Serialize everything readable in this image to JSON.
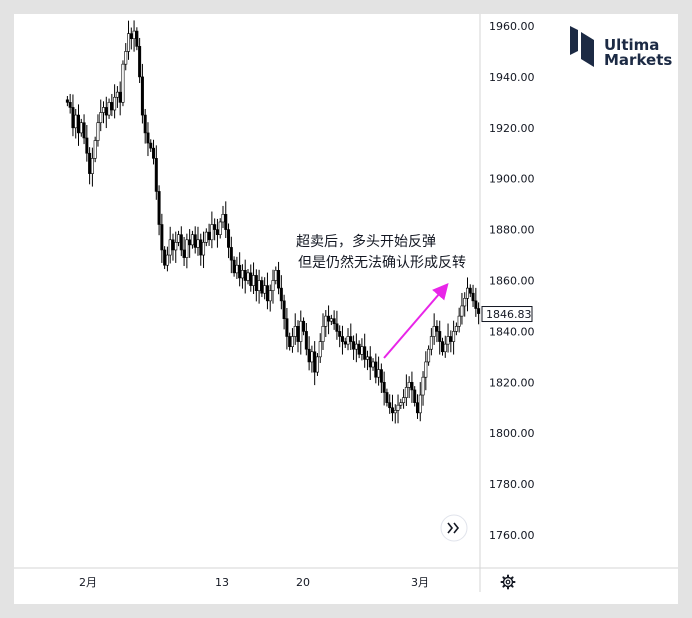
{
  "brand": {
    "name_line1": "Ultima",
    "name_line2": "Markets"
  },
  "annotation": {
    "line1": "超卖后，多头开始反弹",
    "line2": "但是仍然无法确认形成反转"
  },
  "price_tag": "1846.83",
  "icons": {
    "scroll": "double-chevron-right-icon",
    "settings": "gear-icon"
  },
  "chart_data": {
    "type": "candlestick",
    "title": "",
    "x_tick_labels": [
      "2月",
      "13",
      "20",
      "3月"
    ],
    "y_tick_labels": [
      "1960.00",
      "1940.00",
      "1920.00",
      "1900.00",
      "1880.00",
      "1860.00",
      "1840.00",
      "1820.00",
      "1800.00",
      "1780.00",
      "1760.00"
    ],
    "ylim": [
      1755,
      1965
    ],
    "last_price": 1846.83,
    "grid": false,
    "colors": {
      "candle_up": "#ffffff",
      "candle_down": "#000000",
      "outline": "#000000",
      "arrow": "#e825e8",
      "price_tag_border": "#131722"
    },
    "close_path": [
      1930,
      1928,
      1920,
      1925,
      1918,
      1922,
      1916,
      1910,
      1902,
      1908,
      1915,
      1922,
      1926,
      1928,
      1925,
      1930,
      1927,
      1932,
      1934,
      1930,
      1945,
      1950,
      1957,
      1955,
      1958,
      1952,
      1940,
      1925,
      1918,
      1914,
      1912,
      1908,
      1895,
      1882,
      1872,
      1866,
      1870,
      1876,
      1872,
      1875,
      1878,
      1872,
      1869,
      1876,
      1874,
      1878,
      1873,
      1876,
      1870,
      1875,
      1879,
      1876,
      1882,
      1880,
      1878,
      1883,
      1886,
      1880,
      1873,
      1868,
      1863,
      1866,
      1861,
      1864,
      1860,
      1863,
      1858,
      1862,
      1856,
      1860,
      1855,
      1858,
      1852,
      1856,
      1860,
      1864,
      1857,
      1852,
      1845,
      1838,
      1834,
      1838,
      1842,
      1836,
      1844,
      1840,
      1833,
      1828,
      1832,
      1824,
      1830,
      1836,
      1842,
      1846,
      1844,
      1845,
      1843,
      1840,
      1838,
      1836,
      1835,
      1838,
      1836,
      1833,
      1835,
      1831,
      1834,
      1829,
      1830,
      1826,
      1828,
      1822,
      1825,
      1820,
      1816,
      1812,
      1810,
      1808,
      1809,
      1811,
      1812,
      1814,
      1818,
      1820,
      1817,
      1812,
      1808,
      1815,
      1822,
      1828,
      1833,
      1838,
      1842,
      1840,
      1836,
      1832,
      1835,
      1838,
      1836,
      1840,
      1842,
      1846,
      1850,
      1853,
      1857,
      1855,
      1852,
      1849,
      1847
    ]
  }
}
